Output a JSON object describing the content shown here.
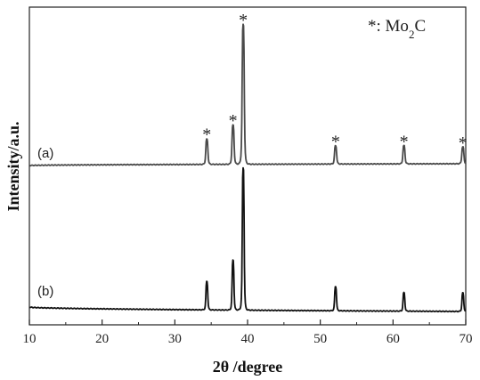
{
  "chart_data": {
    "type": "line",
    "xlabel": "2θ /degree",
    "ylabel": "Intensity/a.u.",
    "xlim": [
      10,
      70
    ],
    "xticks": [
      10,
      20,
      30,
      40,
      50,
      60,
      70
    ],
    "grid": false,
    "series": [
      {
        "label": "(a)",
        "color": "#4a4a4a",
        "peaks": [
          {
            "x": 34.4,
            "height": 0.18
          },
          {
            "x": 38.0,
            "height": 0.28
          },
          {
            "x": 39.4,
            "height": 1.0
          },
          {
            "x": 52.1,
            "height": 0.13
          },
          {
            "x": 61.5,
            "height": 0.13
          },
          {
            "x": 69.6,
            "height": 0.12
          }
        ]
      },
      {
        "label": "(b)",
        "color": "#111111",
        "peaks": [
          {
            "x": 34.4,
            "height": 0.2
          },
          {
            "x": 38.0,
            "height": 0.35
          },
          {
            "x": 39.4,
            "height": 1.0
          },
          {
            "x": 52.1,
            "height": 0.17
          },
          {
            "x": 61.5,
            "height": 0.13
          },
          {
            "x": 69.6,
            "height": 0.13
          }
        ]
      }
    ],
    "markers": {
      "symbol": "*",
      "x": [
        34.4,
        38.0,
        39.4,
        52.1,
        61.5,
        69.6
      ]
    },
    "legend": {
      "symbol": "*",
      "text_prefix": ": Mo",
      "subscript": "2",
      "text_suffix": "C",
      "placement": "top-right"
    }
  }
}
